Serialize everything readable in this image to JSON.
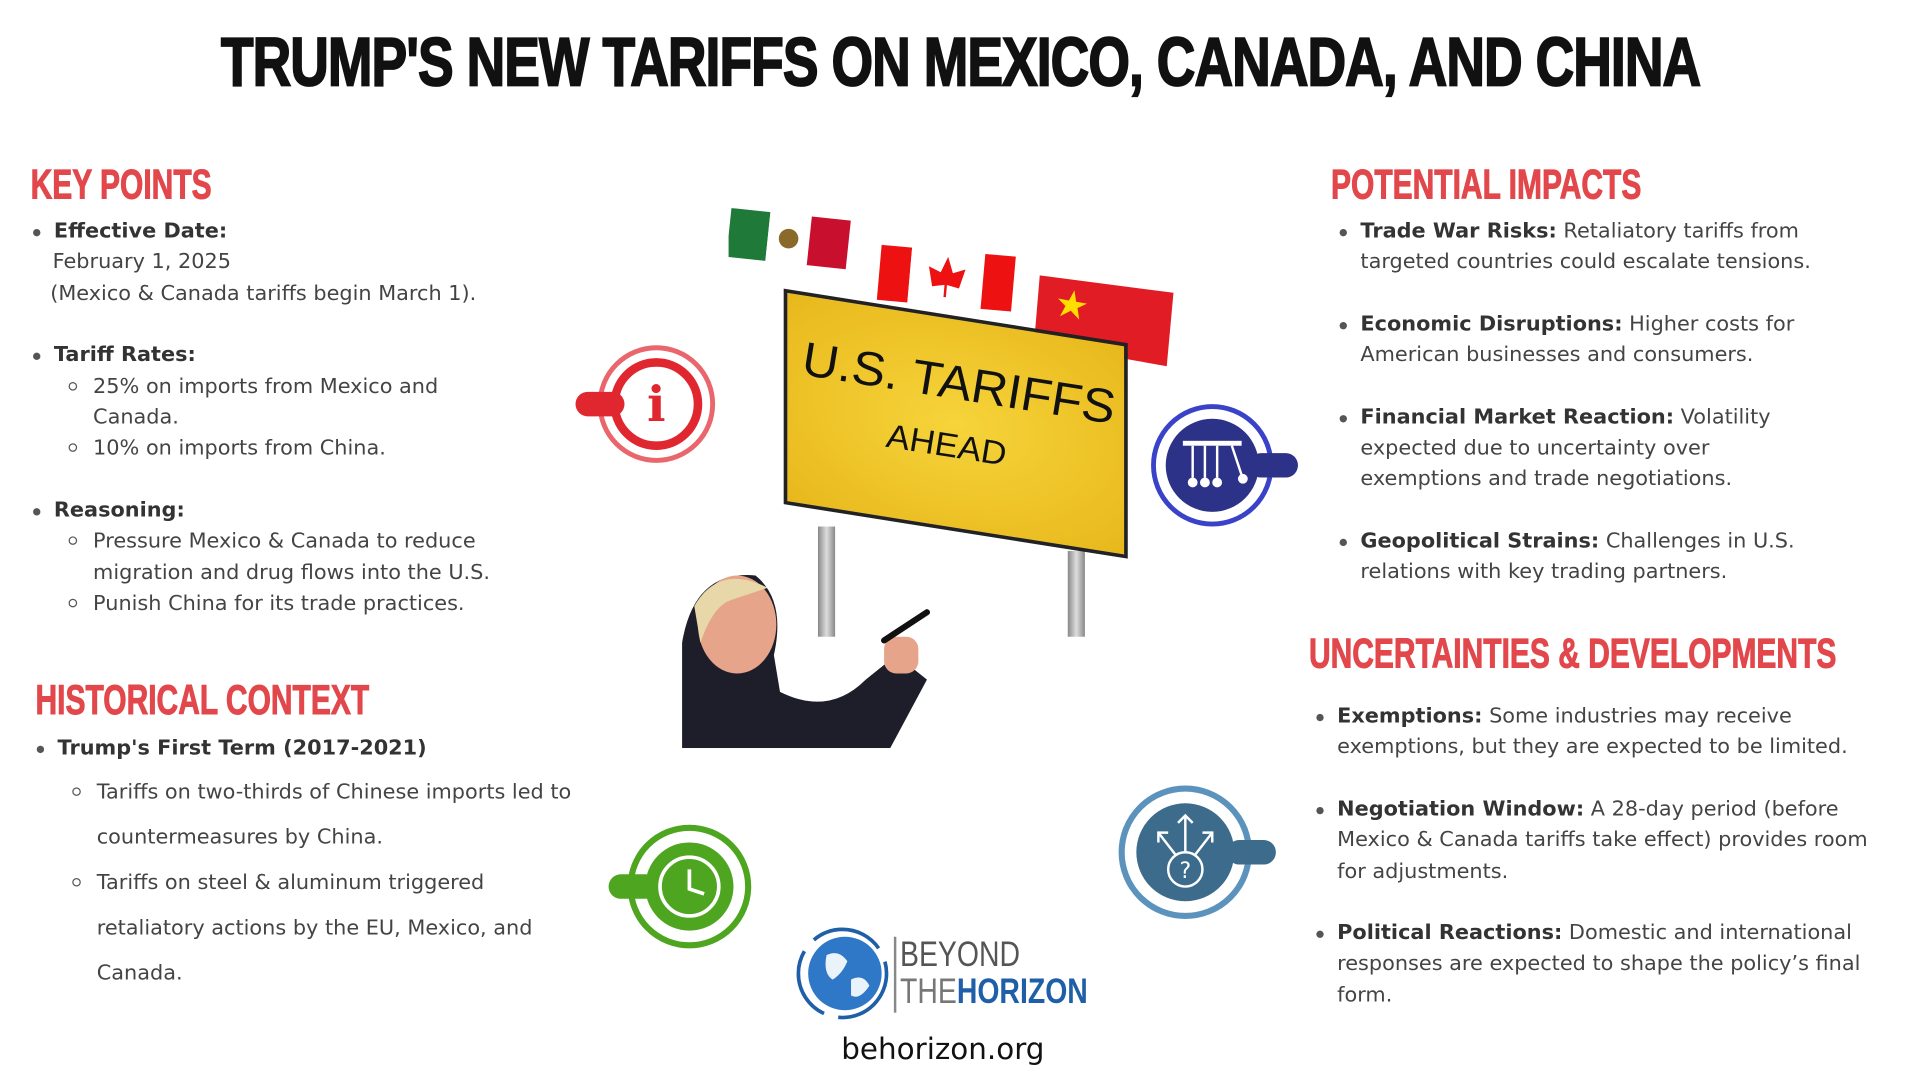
{
  "title": "TRUMP'S NEW TARIFFS ON MEXICO, CANADA, AND CHINA",
  "key_points": {
    "heading": "KEY POINTS",
    "effective_date_label": "Effective Date:",
    "effective_date_value": "February 1, 2025",
    "effective_date_note": "(Mexico & Canada tariffs begin March 1).",
    "tariff_rates_label": "Tariff Rates:",
    "tariff_rates": [
      "25% on imports from Mexico and Canada.",
      "10% on imports from China."
    ],
    "reasoning_label": "Reasoning:",
    "reasoning": [
      "Pressure Mexico & Canada to reduce migration and drug flows into the U.S.",
      "Punish China for its trade practices."
    ]
  },
  "historical_context": {
    "heading": "HISTORICAL CONTEXT",
    "term_label": "Trump's First Term (2017-2021)",
    "items": [
      "Tariffs on two-thirds of Chinese imports led to countermeasures by China.",
      "Tariffs on steel & aluminum triggered retaliatory actions by the EU, Mexico, and Canada."
    ]
  },
  "potential_impacts": {
    "heading": "POTENTIAL IMPACTS",
    "items": [
      {
        "label": "Trade War Risks:",
        "text": " Retaliatory tariffs from targeted countries could escalate tensions."
      },
      {
        "label": "Economic Disruptions:",
        "text": " Higher costs for American businesses and consumers."
      },
      {
        "label": "Financial Market Reaction:",
        "text": " Volatility expected due to uncertainty over exemptions and trade negotiations."
      },
      {
        "label": "Geopolitical Strains:",
        "text": " Challenges in U.S. relations with key trading partners."
      }
    ]
  },
  "uncertainties": {
    "heading": "UNCERTAINTIES & DEVELOPMENTS",
    "items": [
      {
        "label": "Exemptions:",
        "text": " Some industries may receive exemptions, but they are expected to be limited."
      },
      {
        "label": "Negotiation Window:",
        "text": " A 28-day period (before Mexico & Canada tariffs take effect) provides room for adjustments."
      },
      {
        "label": "Political Reactions:",
        "text": " Domestic and international responses are expected to shape the policy’s final form."
      }
    ]
  },
  "sign": {
    "line1": "U.S. TARIFFS",
    "line2": "AHEAD"
  },
  "logo": {
    "line1": "BEYOND",
    "line2a": "THE",
    "line2b": "HORIZON"
  },
  "website": "behorizon.org",
  "colors": {
    "heading": "#e2474b",
    "info_icon": "#e0262e",
    "balance_icon": "#2b3287",
    "clock_icon": "#4ea51f",
    "question_icon": "#3d6b8c",
    "logo_blue": "#1f5fa8"
  },
  "icons": [
    "info-icon",
    "newtons-cradle-icon",
    "clock-history-icon",
    "decision-question-icon"
  ]
}
